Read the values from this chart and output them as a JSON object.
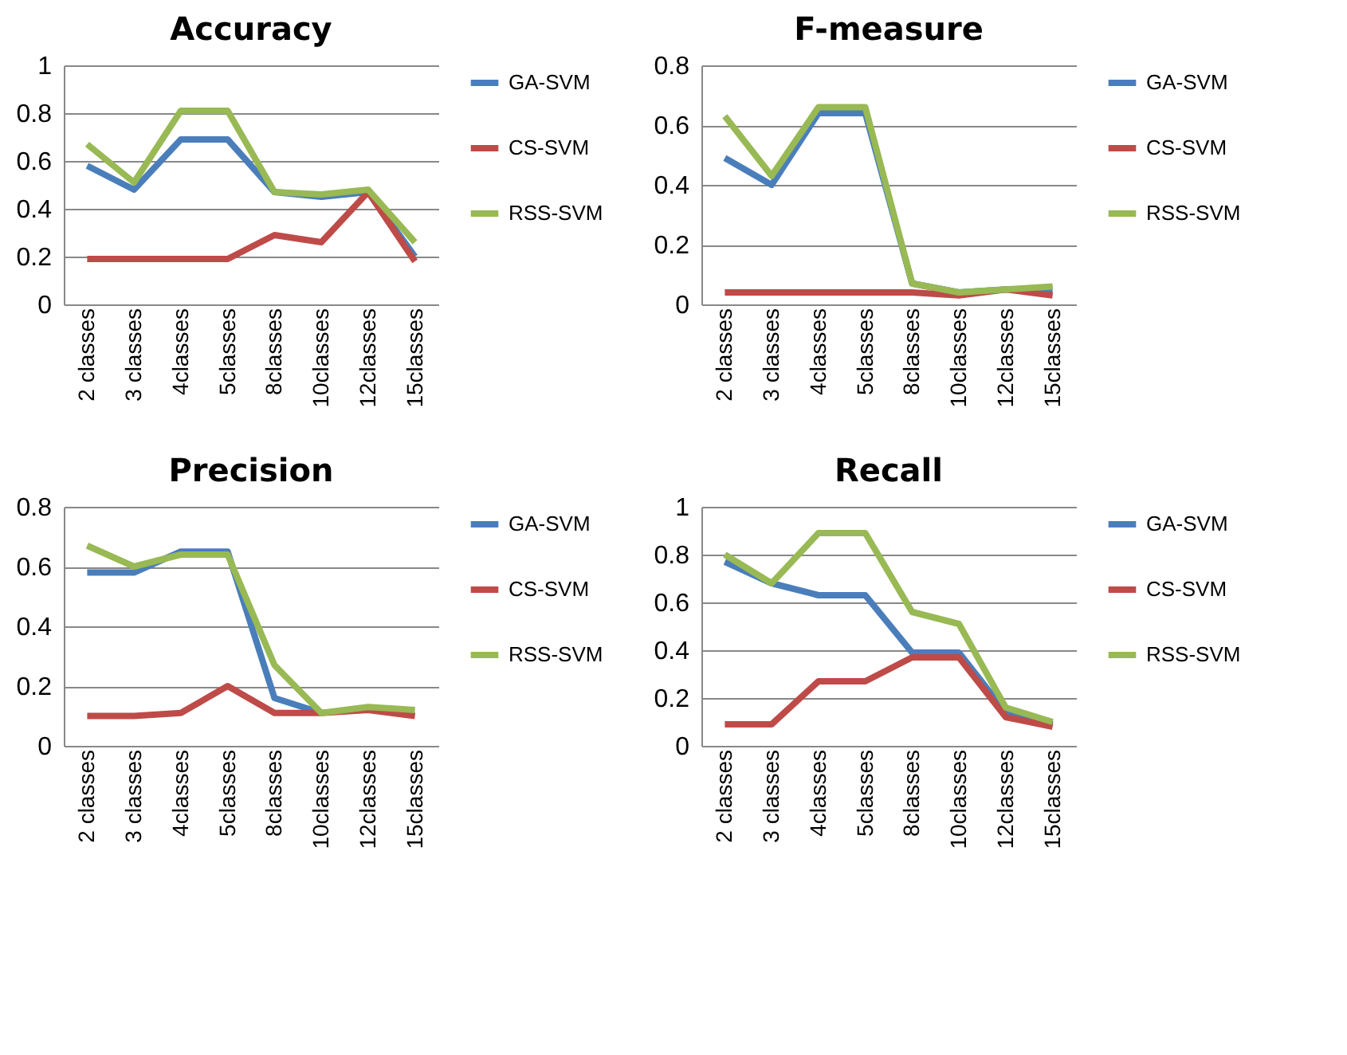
{
  "chart_data": [
    {
      "type": "line",
      "title": "Accuracy",
      "categories": [
        "2 classes",
        "3 classes",
        "4classes",
        "5classes",
        "8classes",
        "10classes",
        "12classes",
        "15classes"
      ],
      "ylim": [
        0,
        1
      ],
      "yticks": [
        0,
        0.2,
        0.4,
        0.6,
        0.8,
        1
      ],
      "grid": "y",
      "legend": "right",
      "series": [
        {
          "name": "GA-SVM",
          "color": "#4a7ebb",
          "values": [
            0.58,
            0.48,
            0.69,
            0.69,
            0.47,
            0.45,
            0.47,
            0.2
          ]
        },
        {
          "name": "CS-SVM",
          "color": "#be4b48",
          "values": [
            0.19,
            0.19,
            0.19,
            0.19,
            0.29,
            0.26,
            0.47,
            0.18
          ]
        },
        {
          "name": "RSS-SVM",
          "color": "#98b954",
          "values": [
            0.67,
            0.51,
            0.81,
            0.81,
            0.47,
            0.46,
            0.48,
            0.26
          ]
        }
      ]
    },
    {
      "type": "line",
      "title": "F-measure",
      "categories": [
        "2 classes",
        "3 classes",
        "4classes",
        "5classes",
        "8classes",
        "10classes",
        "12classes",
        "15classes"
      ],
      "ylim": [
        0,
        0.8
      ],
      "yticks": [
        0,
        0.2,
        0.4,
        0.6,
        0.8
      ],
      "grid": "y",
      "legend": "right",
      "series": [
        {
          "name": "GA-SVM",
          "color": "#4a7ebb",
          "values": [
            0.49,
            0.4,
            0.64,
            0.64,
            0.07,
            0.04,
            0.05,
            0.05
          ]
        },
        {
          "name": "CS-SVM",
          "color": "#be4b48",
          "values": [
            0.04,
            0.04,
            0.04,
            0.04,
            0.04,
            0.03,
            0.05,
            0.03
          ]
        },
        {
          "name": "RSS-SVM",
          "color": "#98b954",
          "values": [
            0.63,
            0.43,
            0.66,
            0.66,
            0.07,
            0.04,
            0.05,
            0.06
          ]
        }
      ]
    },
    {
      "type": "line",
      "title": "Precision",
      "categories": [
        "2 classes",
        "3 classes",
        "4classes",
        "5classes",
        "8classes",
        "10classes",
        "12classes",
        "15classes"
      ],
      "ylim": [
        0,
        0.8
      ],
      "yticks": [
        0,
        0.2,
        0.4,
        0.6,
        0.8
      ],
      "grid": "y",
      "legend": "right",
      "series": [
        {
          "name": "GA-SVM",
          "color": "#4a7ebb",
          "values": [
            0.58,
            0.58,
            0.65,
            0.65,
            0.16,
            0.11,
            null,
            null
          ]
        },
        {
          "name": "CS-SVM",
          "color": "#be4b48",
          "values": [
            0.1,
            0.1,
            0.11,
            0.2,
            0.11,
            0.11,
            0.12,
            0.1
          ]
        },
        {
          "name": "RSS-SVM",
          "color": "#98b954",
          "values": [
            0.67,
            0.6,
            0.64,
            0.64,
            0.27,
            0.11,
            0.13,
            0.12
          ]
        }
      ]
    },
    {
      "type": "line",
      "title": "Recall",
      "categories": [
        "2 classes",
        "3 classes",
        "4classes",
        "5classes",
        "8classes",
        "10classes",
        "12classes",
        "15classes"
      ],
      "ylim": [
        0,
        1
      ],
      "yticks": [
        0,
        0.2,
        0.4,
        0.6,
        0.8,
        1
      ],
      "grid": "y",
      "legend": "right",
      "series": [
        {
          "name": "GA-SVM",
          "color": "#4a7ebb",
          "values": [
            0.77,
            0.68,
            0.63,
            0.63,
            0.39,
            0.39,
            0.14,
            0.09
          ]
        },
        {
          "name": "CS-SVM",
          "color": "#be4b48",
          "values": [
            0.09,
            0.09,
            0.27,
            0.27,
            0.37,
            0.37,
            0.12,
            0.08
          ]
        },
        {
          "name": "RSS-SVM",
          "color": "#98b954",
          "values": [
            0.8,
            0.68,
            0.89,
            0.89,
            0.56,
            0.51,
            0.16,
            0.1
          ]
        }
      ]
    }
  ]
}
